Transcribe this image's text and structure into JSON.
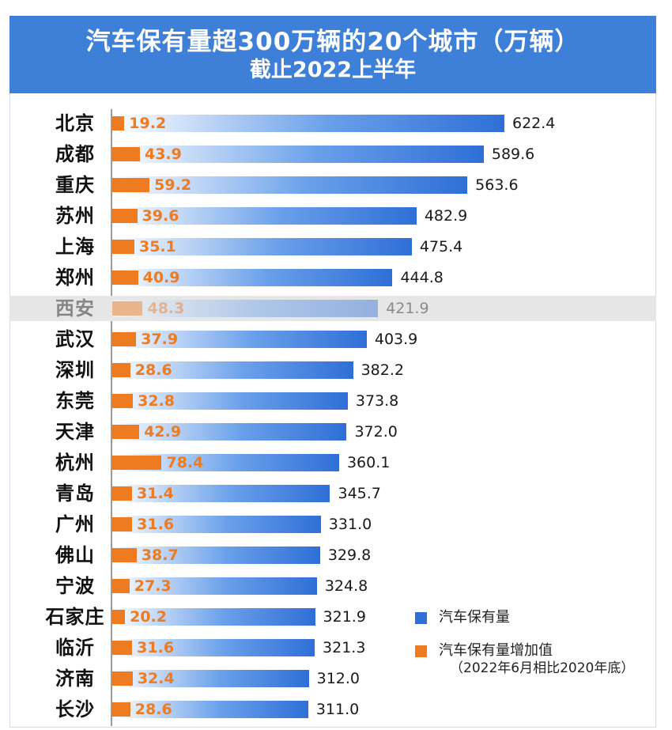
{
  "chart_data": {
    "type": "bar",
    "orientation": "horizontal",
    "title": "汽车保有量超300万辆的20个城市（万辆）",
    "subtitle": "截止2022上半年",
    "categories": [
      "北京",
      "成都",
      "重庆",
      "苏州",
      "上海",
      "郑州",
      "西安",
      "武汉",
      "深圳",
      "东莞",
      "天津",
      "杭州",
      "青岛",
      "广州",
      "佛山",
      "宁波",
      "石家庄",
      "临沂",
      "济南",
      "长沙"
    ],
    "series": [
      {
        "name": "汽车保有量",
        "color": "#2f6fd6",
        "values": [
          622.4,
          589.6,
          563.6,
          482.9,
          475.4,
          444.8,
          421.9,
          403.9,
          382.2,
          373.8,
          372.0,
          360.1,
          345.7,
          331.0,
          329.8,
          324.8,
          321.9,
          321.3,
          312.0,
          311.0
        ],
        "labels": [
          "622.4",
          "589.6",
          "563.6",
          "482.9",
          "475.4",
          "444.8",
          "421.9",
          "403.9",
          "382.2",
          "373.8",
          "372.0",
          "360.1",
          "345.7",
          "331.0",
          "329.8",
          "324.8",
          "321.9",
          "321.3",
          "312.0",
          "311.0"
        ]
      },
      {
        "name": "汽车保有量增加值",
        "note": "（2022年6月相比2020年底）",
        "color": "#ee7b20",
        "values": [
          19.2,
          43.9,
          59.2,
          39.6,
          35.1,
          40.9,
          48.3,
          37.9,
          28.6,
          32.8,
          42.9,
          78.4,
          31.4,
          31.6,
          38.7,
          27.3,
          20.2,
          31.6,
          32.4,
          28.6
        ],
        "labels": [
          "19.2",
          "43.9",
          "59.2",
          "39.6",
          "35.1",
          "40.9",
          "48.3",
          "37.9",
          "28.6",
          "32.8",
          "42.9",
          "78.4",
          "31.4",
          "31.6",
          "38.7",
          "27.3",
          "20.2",
          "31.6",
          "32.4",
          "28.6"
        ]
      }
    ],
    "highlighted_dimmed_category": "西安",
    "legend_position": "bottom-right",
    "xlim": [
      0,
      622.4
    ],
    "grid": false
  },
  "colors": {
    "header_bg": "#3e7fd8",
    "total_bar": "#2f6fd6",
    "increase_bar": "#ee7b20"
  }
}
